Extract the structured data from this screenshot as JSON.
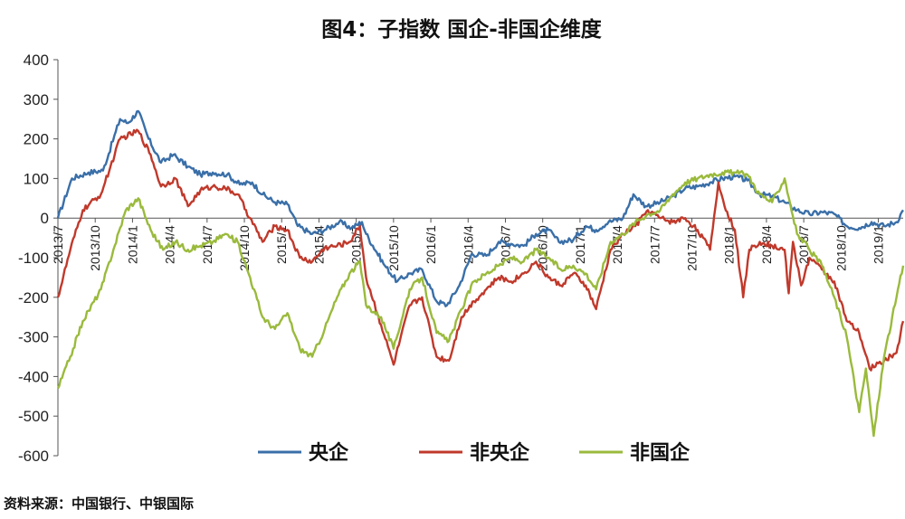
{
  "chart_data": {
    "type": "line",
    "title": "图4：子指数 国企-非国企维度",
    "source": "资料来源：中国银行、中银国际",
    "ylim": [
      -600,
      400
    ],
    "yticks": [
      400,
      300,
      200,
      100,
      0,
      -100,
      -200,
      -300,
      -400,
      -500,
      -600
    ],
    "xlim": [
      "2013-07",
      "2019-03"
    ],
    "xticks": [
      "2013/7",
      "2013/10",
      "2014/1",
      "2014/4",
      "2014/7",
      "2014/10",
      "2015/1",
      "2015/4",
      "2015/7",
      "2015/10",
      "2016/1",
      "2016/4",
      "2016/7",
      "2016/10",
      "2017/1",
      "2017/4",
      "2017/7",
      "2017/10",
      "2018/1",
      "2018/4",
      "2018/7",
      "2018/10",
      "2019/1"
    ],
    "legend_position": "bottom",
    "grid": false,
    "series": [
      {
        "name": "央企",
        "color": "#3a6fa8",
        "points": [
          [
            "2013-07-01",
            0
          ],
          [
            "2013-08-05",
            100
          ],
          [
            "2013-09-15",
            115
          ],
          [
            "2013-10-20",
            120
          ],
          [
            "2013-12-01",
            250
          ],
          [
            "2013-12-20",
            240
          ],
          [
            "2014-01-15",
            270
          ],
          [
            "2014-02-10",
            200
          ],
          [
            "2014-03-10",
            140
          ],
          [
            "2014-04-10",
            160
          ],
          [
            "2014-05-15",
            130
          ],
          [
            "2014-06-15",
            110
          ],
          [
            "2014-07-15",
            115
          ],
          [
            "2014-08-20",
            110
          ],
          [
            "2014-09-20",
            85
          ],
          [
            "2014-10-20",
            90
          ],
          [
            "2014-11-15",
            60
          ],
          [
            "2014-12-15",
            40
          ],
          [
            "2015-01-15",
            35
          ],
          [
            "2015-02-10",
            -20
          ],
          [
            "2015-03-15",
            -40
          ],
          [
            "2015-04-15",
            -30
          ],
          [
            "2015-05-20",
            -10
          ],
          [
            "2015-06-20",
            -25
          ],
          [
            "2015-07-15",
            -10
          ],
          [
            "2015-07-25",
            -40
          ],
          [
            "2015-09-10",
            -120
          ],
          [
            "2015-10-10",
            -160
          ],
          [
            "2015-11-10",
            -140
          ],
          [
            "2015-12-10",
            -130
          ],
          [
            "2016-01-15",
            -210
          ],
          [
            "2016-02-10",
            -220
          ],
          [
            "2016-03-10",
            -170
          ],
          [
            "2016-04-10",
            -90
          ],
          [
            "2016-05-15",
            -95
          ],
          [
            "2016-06-15",
            -60
          ],
          [
            "2016-07-15",
            -65
          ],
          [
            "2016-08-15",
            -70
          ],
          [
            "2016-09-15",
            -40
          ],
          [
            "2016-10-15",
            -30
          ],
          [
            "2016-11-10",
            -60
          ],
          [
            "2016-12-15",
            -55
          ],
          [
            "2017-01-15",
            -20
          ],
          [
            "2017-02-10",
            -30
          ],
          [
            "2017-03-10",
            -10
          ],
          [
            "2017-04-15",
            0
          ],
          [
            "2017-05-10",
            60
          ],
          [
            "2017-06-10",
            30
          ],
          [
            "2017-07-15",
            40
          ],
          [
            "2017-08-15",
            55
          ],
          [
            "2017-09-15",
            75
          ],
          [
            "2017-10-15",
            80
          ],
          [
            "2017-11-15",
            90
          ],
          [
            "2017-12-15",
            100
          ],
          [
            "2018-01-15",
            105
          ],
          [
            "2018-02-15",
            95
          ],
          [
            "2018-03-15",
            60
          ],
          [
            "2018-04-15",
            55
          ],
          [
            "2018-05-15",
            40
          ],
          [
            "2018-06-15",
            20
          ],
          [
            "2018-07-15",
            10
          ],
          [
            "2018-08-15",
            15
          ],
          [
            "2018-09-15",
            10
          ],
          [
            "2018-10-15",
            -20
          ],
          [
            "2018-11-15",
            -25
          ],
          [
            "2018-12-15",
            -10
          ],
          [
            "2019-01-15",
            -20
          ],
          [
            "2019-02-15",
            -10
          ],
          [
            "2019-03-01",
            20
          ]
        ]
      },
      {
        "name": "非央企",
        "color": "#c0392b",
        "points": [
          [
            "2013-07-01",
            -200
          ],
          [
            "2013-08-01",
            -80
          ],
          [
            "2013-09-01",
            20
          ],
          [
            "2013-10-15",
            60
          ],
          [
            "2013-12-01",
            200
          ],
          [
            "2014-01-15",
            220
          ],
          [
            "2014-02-15",
            160
          ],
          [
            "2014-03-10",
            80
          ],
          [
            "2014-04-15",
            100
          ],
          [
            "2014-05-15",
            30
          ],
          [
            "2014-06-15",
            70
          ],
          [
            "2014-07-15",
            80
          ],
          [
            "2014-08-15",
            75
          ],
          [
            "2014-09-15",
            60
          ],
          [
            "2014-10-15",
            0
          ],
          [
            "2014-11-15",
            -60
          ],
          [
            "2014-12-15",
            -20
          ],
          [
            "2015-01-15",
            -30
          ],
          [
            "2015-02-15",
            -100
          ],
          [
            "2015-03-15",
            -110
          ],
          [
            "2015-04-15",
            -75
          ],
          [
            "2015-05-15",
            -70
          ],
          [
            "2015-06-15",
            -60
          ],
          [
            "2015-07-10",
            -20
          ],
          [
            "2015-07-25",
            -150
          ],
          [
            "2015-09-01",
            -270
          ],
          [
            "2015-10-01",
            -370
          ],
          [
            "2015-11-10",
            -220
          ],
          [
            "2015-12-10",
            -200
          ],
          [
            "2016-01-15",
            -350
          ],
          [
            "2016-02-15",
            -360
          ],
          [
            "2016-03-15",
            -250
          ],
          [
            "2016-04-15",
            -210
          ],
          [
            "2016-05-15",
            -180
          ],
          [
            "2016-06-15",
            -150
          ],
          [
            "2016-07-15",
            -160
          ],
          [
            "2016-08-15",
            -140
          ],
          [
            "2016-09-15",
            -110
          ],
          [
            "2016-10-15",
            -150
          ],
          [
            "2016-11-15",
            -170
          ],
          [
            "2016-12-15",
            -140
          ],
          [
            "2017-01-15",
            -170
          ],
          [
            "2017-02-10",
            -230
          ],
          [
            "2017-03-15",
            -80
          ],
          [
            "2017-04-15",
            -40
          ],
          [
            "2017-05-15",
            -20
          ],
          [
            "2017-06-15",
            20
          ],
          [
            "2017-07-15",
            0
          ],
          [
            "2017-08-15",
            -10
          ],
          [
            "2017-09-15",
            0
          ],
          [
            "2017-10-15",
            -30
          ],
          [
            "2017-11-15",
            -80
          ],
          [
            "2017-12-05",
            90
          ],
          [
            "2017-12-20",
            30
          ],
          [
            "2018-01-15",
            -30
          ],
          [
            "2018-02-05",
            -200
          ],
          [
            "2018-02-20",
            -80
          ],
          [
            "2018-03-15",
            -60
          ],
          [
            "2018-04-15",
            -70
          ],
          [
            "2018-05-15",
            -80
          ],
          [
            "2018-05-25",
            -190
          ],
          [
            "2018-06-05",
            -60
          ],
          [
            "2018-06-25",
            -170
          ],
          [
            "2018-07-15",
            -100
          ],
          [
            "2018-08-15",
            -130
          ],
          [
            "2018-09-15",
            -160
          ],
          [
            "2018-10-15",
            -260
          ],
          [
            "2018-11-15",
            -290
          ],
          [
            "2018-12-10",
            -380
          ],
          [
            "2019-01-15",
            -360
          ],
          [
            "2019-02-15",
            -340
          ],
          [
            "2019-03-01",
            -260
          ]
        ]
      },
      {
        "name": "非国企",
        "color": "#9aba3c",
        "points": [
          [
            "2013-07-01",
            -430
          ],
          [
            "2013-08-01",
            -350
          ],
          [
            "2013-09-01",
            -260
          ],
          [
            "2013-10-15",
            -180
          ],
          [
            "2013-11-15",
            -80
          ],
          [
            "2013-12-15",
            20
          ],
          [
            "2014-01-15",
            50
          ],
          [
            "2014-02-15",
            -30
          ],
          [
            "2014-03-15",
            -80
          ],
          [
            "2014-04-15",
            -60
          ],
          [
            "2014-05-15",
            -80
          ],
          [
            "2014-06-15",
            -70
          ],
          [
            "2014-07-15",
            -60
          ],
          [
            "2014-08-15",
            -40
          ],
          [
            "2014-09-15",
            -60
          ],
          [
            "2014-10-15",
            -150
          ],
          [
            "2014-11-15",
            -250
          ],
          [
            "2014-12-15",
            -280
          ],
          [
            "2015-01-15",
            -240
          ],
          [
            "2015-02-15",
            -330
          ],
          [
            "2015-03-15",
            -350
          ],
          [
            "2015-04-15",
            -280
          ],
          [
            "2015-05-15",
            -200
          ],
          [
            "2015-06-15",
            -140
          ],
          [
            "2015-07-10",
            -110
          ],
          [
            "2015-07-25",
            -220
          ],
          [
            "2015-09-01",
            -250
          ],
          [
            "2015-10-01",
            -330
          ],
          [
            "2015-11-10",
            -180
          ],
          [
            "2015-12-10",
            -150
          ],
          [
            "2016-01-15",
            -290
          ],
          [
            "2016-02-15",
            -310
          ],
          [
            "2016-03-15",
            -230
          ],
          [
            "2016-04-15",
            -160
          ],
          [
            "2016-05-15",
            -140
          ],
          [
            "2016-06-15",
            -120
          ],
          [
            "2016-07-15",
            -100
          ],
          [
            "2016-08-15",
            -110
          ],
          [
            "2016-09-15",
            -80
          ],
          [
            "2016-10-15",
            -100
          ],
          [
            "2016-11-15",
            -130
          ],
          [
            "2016-12-15",
            -120
          ],
          [
            "2017-01-15",
            -140
          ],
          [
            "2017-02-10",
            -180
          ],
          [
            "2017-03-15",
            -60
          ],
          [
            "2017-04-15",
            -40
          ],
          [
            "2017-05-15",
            -10
          ],
          [
            "2017-06-15",
            10
          ],
          [
            "2017-07-15",
            20
          ],
          [
            "2017-08-15",
            60
          ],
          [
            "2017-09-15",
            90
          ],
          [
            "2017-10-15",
            100
          ],
          [
            "2017-11-15",
            110
          ],
          [
            "2017-12-15",
            115
          ],
          [
            "2018-01-15",
            115
          ],
          [
            "2018-02-15",
            110
          ],
          [
            "2018-03-15",
            60
          ],
          [
            "2018-04-15",
            40
          ],
          [
            "2018-05-15",
            100
          ],
          [
            "2018-06-15",
            -40
          ],
          [
            "2018-07-15",
            -80
          ],
          [
            "2018-08-15",
            -120
          ],
          [
            "2018-09-15",
            -200
          ],
          [
            "2018-10-15",
            -300
          ],
          [
            "2018-11-15",
            -490
          ],
          [
            "2018-12-01",
            -380
          ],
          [
            "2018-12-20",
            -550
          ],
          [
            "2019-01-15",
            -350
          ],
          [
            "2019-02-15",
            -200
          ],
          [
            "2019-03-01",
            -120
          ]
        ]
      }
    ]
  }
}
